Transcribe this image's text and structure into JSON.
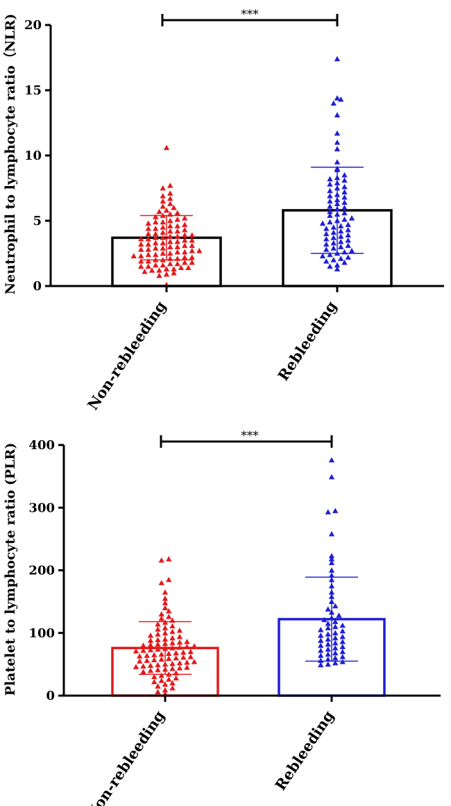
{
  "chart_data": [
    {
      "type": "bar",
      "title": "",
      "ylabel": "Neutrophil to lymphocyte ratio（NLR)",
      "xlabel": "",
      "ylim": [
        0,
        20
      ],
      "yticks": [
        "0",
        "5",
        "10",
        "15",
        "20"
      ],
      "categories": [
        "Non-rebleeding",
        "Rebleeding"
      ],
      "values": [
        3.7,
        5.8
      ],
      "sd": [
        1.7,
        3.3
      ],
      "bar_colors": [
        "#000000",
        "#000000"
      ],
      "point_colors": [
        "#e31a1c",
        "#1f1fd6"
      ],
      "significance": "***",
      "points": [
        [
          10.6,
          7.7,
          7.5,
          7.1,
          6.9,
          6.7,
          6.5,
          6.3,
          6.1,
          6.0,
          5.8,
          5.7,
          5.6,
          5.5,
          5.4,
          5.3,
          5.2,
          5.1,
          5.0,
          4.9,
          4.9,
          4.8,
          4.7,
          4.6,
          4.6,
          4.5,
          4.4,
          4.4,
          4.3,
          4.2,
          4.2,
          4.1,
          4.0,
          4.0,
          3.9,
          3.9,
          3.8,
          3.8,
          3.7,
          3.7,
          3.6,
          3.6,
          3.5,
          3.5,
          3.4,
          3.4,
          3.3,
          3.3,
          3.2,
          3.2,
          3.1,
          3.1,
          3.0,
          3.0,
          2.9,
          2.9,
          2.8,
          2.8,
          2.7,
          2.7,
          2.6,
          2.6,
          2.5,
          2.5,
          2.4,
          2.4,
          2.3,
          2.3,
          2.2,
          2.2,
          2.1,
          2.1,
          2.0,
          2.0,
          1.9,
          1.9,
          1.8,
          1.8,
          1.7,
          1.7,
          1.6,
          1.6,
          1.5,
          1.5,
          1.4,
          1.4,
          1.3,
          1.3,
          1.2,
          1.2,
          1.1,
          1.0,
          0.9,
          0.8,
          0.1
        ],
        [
          17.4,
          14.4,
          14.3,
          14.0,
          13.1,
          11.7,
          11.0,
          10.5,
          9.5,
          9.0,
          8.9,
          8.5,
          8.3,
          8.2,
          8.1,
          7.9,
          7.8,
          7.6,
          7.5,
          7.3,
          7.2,
          7.0,
          6.9,
          6.8,
          6.6,
          6.5,
          6.4,
          6.3,
          6.1,
          6.0,
          5.9,
          5.7,
          5.6,
          5.5,
          5.4,
          5.2,
          5.1,
          5.0,
          4.9,
          4.8,
          4.7,
          4.6,
          4.5,
          4.4,
          4.3,
          4.2,
          4.1,
          4.0,
          3.9,
          3.8,
          3.7,
          3.6,
          3.5,
          3.4,
          3.3,
          3.2,
          3.1,
          3.0,
          2.9,
          2.8,
          2.7,
          2.6,
          2.5,
          2.4,
          2.3,
          2.2,
          2.1,
          2.0,
          1.9,
          1.8,
          1.6,
          1.5,
          1.3
        ]
      ]
    },
    {
      "type": "bar",
      "title": "",
      "ylabel": "Platelet to lymphocyte ratio (PLR)",
      "xlabel": "",
      "ylim": [
        0,
        400
      ],
      "yticks": [
        "0",
        "100",
        "200",
        "300",
        "400"
      ],
      "categories": [
        "Non-rebleeding",
        "Rebleeding"
      ],
      "values": [
        76,
        122
      ],
      "sd": [
        42,
        67
      ],
      "bar_colors": [
        "#e31a1c",
        "#1f1fd6"
      ],
      "point_colors": [
        "#e31a1c",
        "#1f1fd6"
      ],
      "significance": "***",
      "points": [
        [
          218,
          216,
          185,
          180,
          165,
          155,
          148,
          140,
          135,
          130,
          126,
          123,
          120,
          117,
          114,
          111,
          108,
          106,
          104,
          102,
          100,
          98,
          96,
          94,
          92,
          90,
          89,
          88,
          86,
          85,
          84,
          83,
          82,
          81,
          80,
          79,
          78,
          77,
          76,
          75,
          74,
          73,
          72,
          71,
          70,
          69,
          68,
          67,
          66,
          65,
          64,
          63,
          62,
          61,
          60,
          59,
          58,
          57,
          56,
          55,
          54,
          53,
          52,
          51,
          50,
          49,
          48,
          47,
          46,
          45,
          44,
          43,
          42,
          41,
          40,
          38,
          36,
          34,
          32,
          30,
          28,
          26,
          24,
          22,
          20,
          18,
          15,
          12,
          9,
          6,
          3
        ],
        [
          376,
          349,
          295,
          293,
          258,
          223,
          218,
          212,
          200,
          192,
          185,
          175,
          165,
          158,
          150,
          143,
          138,
          133,
          128,
          124,
          121,
          118,
          115,
          112,
          110,
          108,
          105,
          103,
          100,
          98,
          96,
          94,
          92,
          90,
          88,
          86,
          84,
          82,
          80,
          78,
          76,
          74,
          72,
          70,
          68,
          66,
          64,
          62,
          60,
          58,
          56,
          54,
          52,
          50,
          49
        ]
      ]
    }
  ]
}
